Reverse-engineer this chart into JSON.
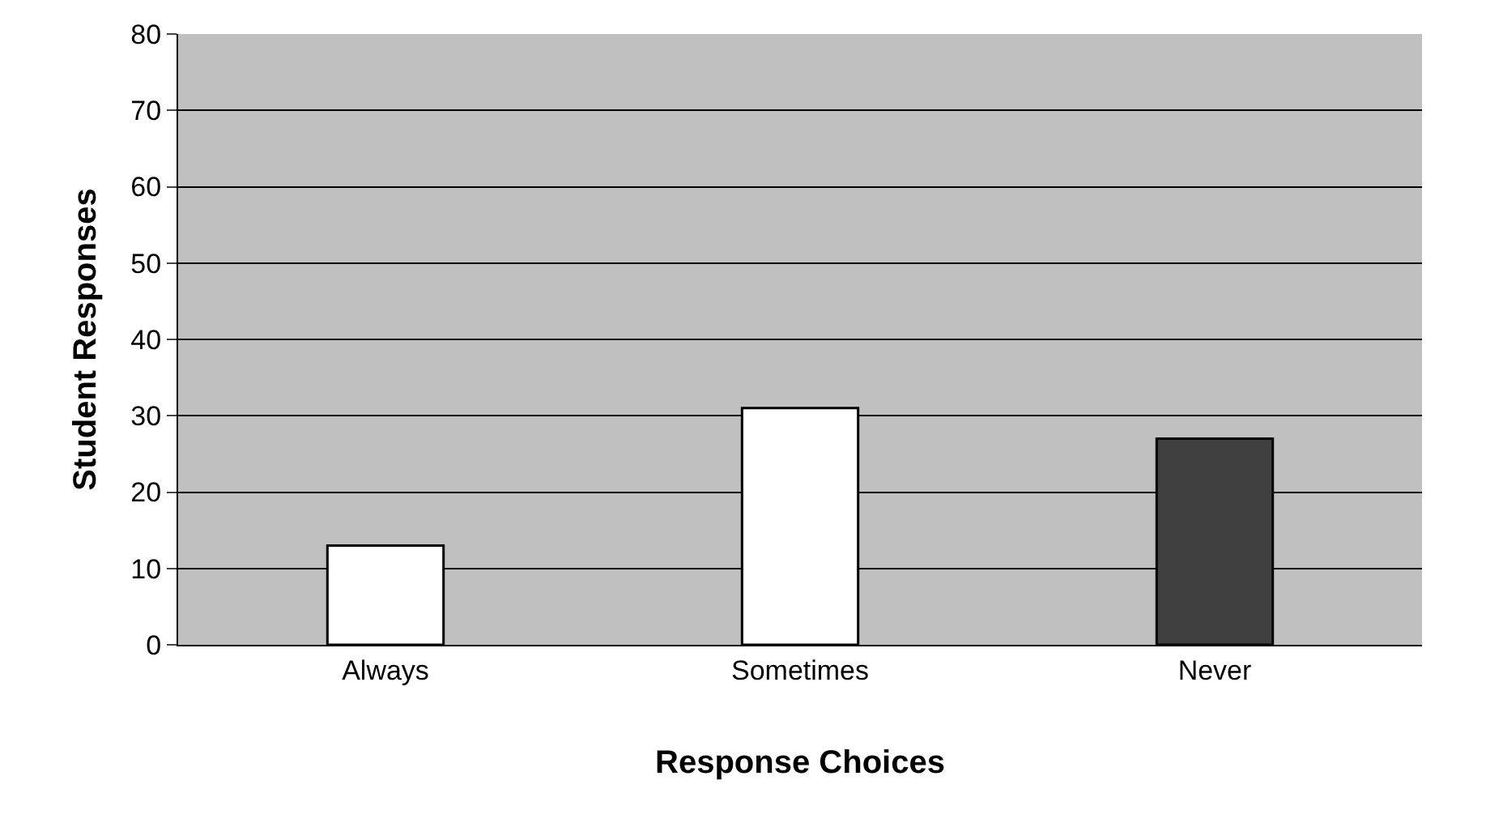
{
  "chart_data": {
    "type": "bar",
    "xlabel": "Response Choices",
    "ylabel": "Student Responses",
    "categories": [
      "Always",
      "Sometimes",
      "Never"
    ],
    "values": [
      13,
      31,
      27
    ],
    "colors": [
      "#ffffff",
      "#ffffff",
      "#404040"
    ],
    "ylim": [
      0,
      80
    ],
    "yticks": [
      0,
      10,
      20,
      30,
      40,
      50,
      60,
      70,
      80
    ],
    "grid": "y"
  }
}
